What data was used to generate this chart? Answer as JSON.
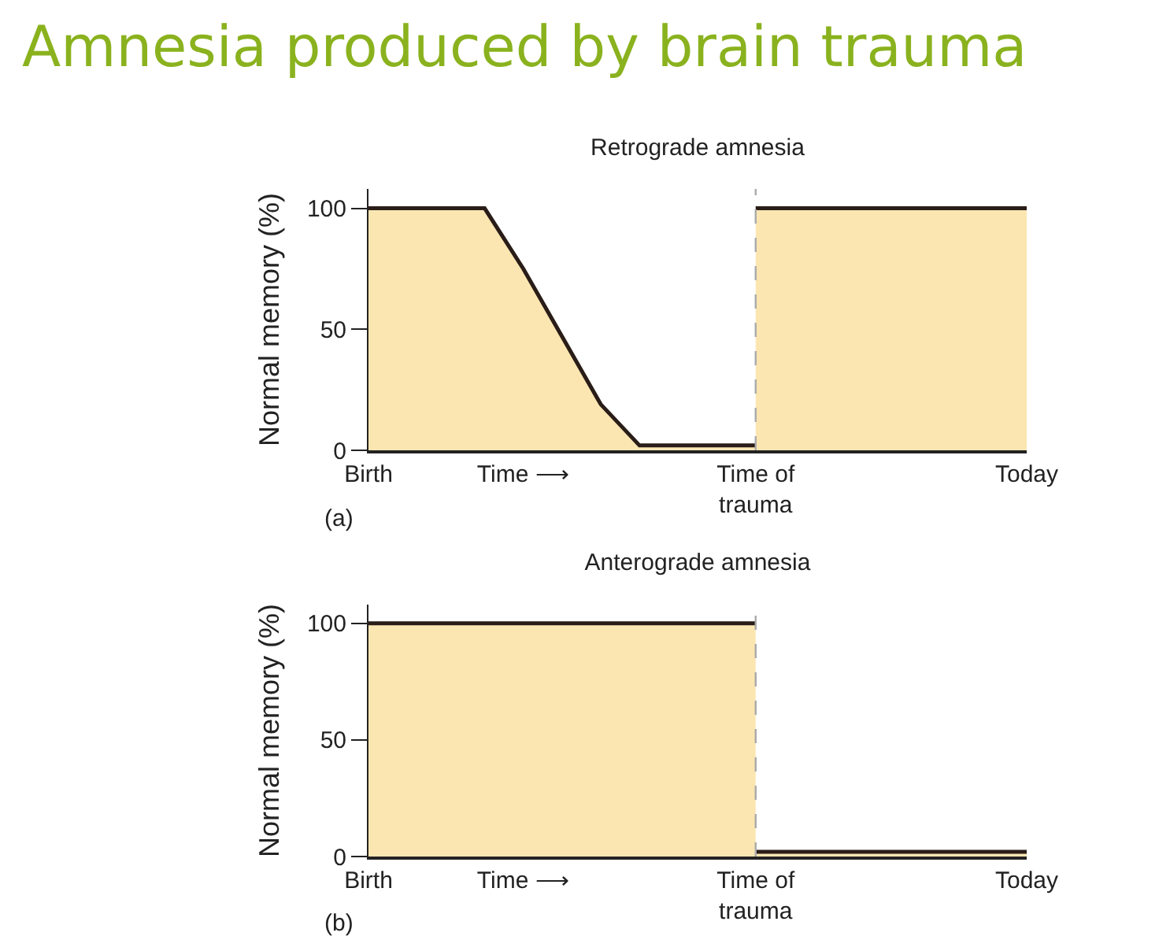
{
  "chart_data": [
    {
      "type": "area",
      "title": "Amnesia produced by brain trauma",
      "subtitle": "Retrograde amnesia",
      "ylabel": "Normal memory (%)",
      "annotations": [
        "(a)"
      ],
      "categories": [
        "Birth",
        null,
        null,
        null,
        "Time ⟶",
        null,
        null,
        null,
        null,
        null,
        "Time of trauma",
        null,
        null,
        null,
        null,
        null,
        null,
        "Today"
      ],
      "series": [
        {
          "color": "#fbe6b2",
          "values": [
            100,
            100,
            100,
            100,
            75,
            47,
            19,
            2,
            2,
            2,
            2,
            null,
            null,
            null,
            null,
            null,
            null,
            null
          ]
        },
        {
          "color": "#fbe6b2",
          "values": [
            null,
            null,
            null,
            null,
            null,
            null,
            null,
            null,
            null,
            null,
            100,
            100,
            100,
            100,
            100,
            100,
            100,
            100
          ]
        }
      ],
      "ylim": [
        0,
        108
      ],
      "yticks": [
        0,
        50,
        100
      ],
      "ref_lines": [
        {
          "axis": "x",
          "value": "Time of trauma",
          "color": "#aaaaaa",
          "line_style": "dashed"
        }
      ]
    },
    {
      "type": "area",
      "title": "Anterograde amnesia",
      "ylabel": "Normal memory (%)",
      "annotations": [
        "(b)"
      ],
      "categories": [
        "Birth",
        null,
        null,
        null,
        "Time ⟶",
        null,
        null,
        null,
        null,
        null,
        "Time of trauma",
        null,
        null,
        null,
        null,
        null,
        null,
        "Today"
      ],
      "series": [
        {
          "color": "#fbe6b2",
          "values": [
            100,
            100,
            100,
            100,
            100,
            100,
            100,
            100,
            100,
            100,
            100,
            null,
            null,
            null,
            null,
            null,
            null,
            null
          ]
        },
        {
          "color": "#fbe6b2",
          "values": [
            null,
            null,
            null,
            null,
            null,
            null,
            null,
            null,
            null,
            null,
            2,
            2,
            2,
            2,
            2,
            2,
            2,
            2
          ]
        }
      ],
      "ylim": [
        0,
        108
      ],
      "yticks": [
        0,
        50,
        100
      ],
      "ref_lines": [
        {
          "axis": "x",
          "value": "Time of trauma",
          "color": "#aaaaaa",
          "line_style": "dashed"
        }
      ]
    }
  ]
}
